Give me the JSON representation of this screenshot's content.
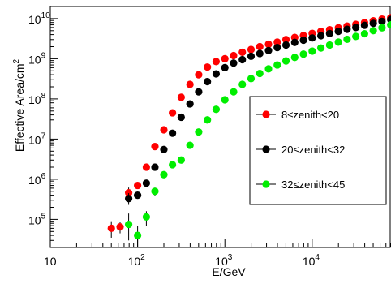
{
  "chart_data": {
    "type": "scatter",
    "title": "",
    "xlabel": "E/GeV",
    "ylabel": "Effective Area/cm",
    "ylabel_sup": "2",
    "x_scale": "log",
    "y_scale": "log",
    "xlim": [
      10,
      80000
    ],
    "ylim": [
      20000,
      20000000000
    ],
    "grid": false,
    "legend_position": "right-middle",
    "x_ticks": [
      {
        "base": "10",
        "exp": "",
        "value": 10
      },
      {
        "base": "10",
        "exp": "2",
        "value": 100
      },
      {
        "base": "10",
        "exp": "3",
        "value": 1000
      },
      {
        "base": "10",
        "exp": "4",
        "value": 10000
      }
    ],
    "y_ticks": [
      {
        "base": "10",
        "exp": "5",
        "value": 100000
      },
      {
        "base": "10",
        "exp": "6",
        "value": 1000000
      },
      {
        "base": "10",
        "exp": "7",
        "value": 10000000
      },
      {
        "base": "10",
        "exp": "8",
        "value": 100000000
      },
      {
        "base": "10",
        "exp": "9",
        "value": 1000000000
      },
      {
        "base": "10",
        "exp": "10",
        "value": 10000000000
      }
    ],
    "series": [
      {
        "name": "8≤zenith<20",
        "color": "#ff0000",
        "points": [
          {
            "x": 50,
            "y": 60000,
            "ylo": 35000,
            "yhi": 90000
          },
          {
            "x": 63,
            "y": 65000,
            "ylo": 45000,
            "yhi": 85000
          },
          {
            "x": 79,
            "y": 460000,
            "ylo": 330000,
            "yhi": 620000
          },
          {
            "x": 100,
            "y": 700000
          },
          {
            "x": 126,
            "y": 2000000
          },
          {
            "x": 158,
            "y": 6500000
          },
          {
            "x": 200,
            "y": 17000000
          },
          {
            "x": 251,
            "y": 45000000
          },
          {
            "x": 316,
            "y": 110000000
          },
          {
            "x": 398,
            "y": 230000000
          },
          {
            "x": 501,
            "y": 400000000
          },
          {
            "x": 631,
            "y": 620000000
          },
          {
            "x": 794,
            "y": 850000000
          },
          {
            "x": 1000,
            "y": 1000000000
          },
          {
            "x": 1259,
            "y": 1200000000
          },
          {
            "x": 1585,
            "y": 1450000000
          },
          {
            "x": 1995,
            "y": 1700000000
          },
          {
            "x": 2512,
            "y": 2000000000
          },
          {
            "x": 3162,
            "y": 2300000000
          },
          {
            "x": 3981,
            "y": 2600000000
          },
          {
            "x": 5012,
            "y": 3000000000
          },
          {
            "x": 6310,
            "y": 3400000000
          },
          {
            "x": 7943,
            "y": 3800000000
          },
          {
            "x": 10000,
            "y": 4300000000
          },
          {
            "x": 12589,
            "y": 4800000000
          },
          {
            "x": 15849,
            "y": 5300000000
          },
          {
            "x": 19953,
            "y": 5900000000
          },
          {
            "x": 25119,
            "y": 6500000000
          },
          {
            "x": 31623,
            "y": 7200000000
          },
          {
            "x": 39811,
            "y": 8000000000
          },
          {
            "x": 50119,
            "y": 8800000000
          },
          {
            "x": 63096,
            "y": 9700000000
          },
          {
            "x": 79433,
            "y": 10500000000
          }
        ]
      },
      {
        "name": "20≤zenith<32",
        "color": "#000000",
        "points": [
          {
            "x": 79,
            "y": 330000,
            "ylo": 230000,
            "yhi": 450000
          },
          {
            "x": 100,
            "y": 400000
          },
          {
            "x": 126,
            "y": 800000
          },
          {
            "x": 158,
            "y": 2000000
          },
          {
            "x": 200,
            "y": 5500000
          },
          {
            "x": 251,
            "y": 14000000
          },
          {
            "x": 316,
            "y": 35000000
          },
          {
            "x": 398,
            "y": 75000000
          },
          {
            "x": 501,
            "y": 150000000
          },
          {
            "x": 631,
            "y": 270000000
          },
          {
            "x": 794,
            "y": 420000000
          },
          {
            "x": 1000,
            "y": 600000000
          },
          {
            "x": 1259,
            "y": 780000000
          },
          {
            "x": 1585,
            "y": 950000000
          },
          {
            "x": 1995,
            "y": 1150000000
          },
          {
            "x": 2512,
            "y": 1350000000
          },
          {
            "x": 3162,
            "y": 1600000000
          },
          {
            "x": 3981,
            "y": 1900000000
          },
          {
            "x": 5012,
            "y": 2200000000
          },
          {
            "x": 6310,
            "y": 2550000000
          },
          {
            "x": 7943,
            "y": 2900000000
          },
          {
            "x": 10000,
            "y": 3300000000
          },
          {
            "x": 12589,
            "y": 3750000000
          },
          {
            "x": 15849,
            "y": 4250000000
          },
          {
            "x": 19953,
            "y": 4800000000
          },
          {
            "x": 25119,
            "y": 5400000000
          },
          {
            "x": 31623,
            "y": 6000000000
          },
          {
            "x": 39811,
            "y": 6800000000
          },
          {
            "x": 50119,
            "y": 7600000000
          },
          {
            "x": 63096,
            "y": 8500000000
          },
          {
            "x": 79433,
            "y": 9500000000
          }
        ]
      },
      {
        "name": "32≤zenith<45",
        "color": "#00ee00",
        "points": [
          {
            "x": 79,
            "y": 75000,
            "ylo": 30000,
            "yhi": 140000
          },
          {
            "x": 100,
            "y": 40000,
            "ylo": 20000,
            "yhi": 70000
          },
          {
            "x": 126,
            "y": 115000,
            "ylo": 70000,
            "yhi": 160000
          },
          {
            "x": 158,
            "y": 500000,
            "ylo": 380000,
            "yhi": 620000
          },
          {
            "x": 200,
            "y": 1300000
          },
          {
            "x": 251,
            "y": 2300000
          },
          {
            "x": 316,
            "y": 3000000
          },
          {
            "x": 398,
            "y": 7000000
          },
          {
            "x": 501,
            "y": 15000000
          },
          {
            "x": 631,
            "y": 30000000
          },
          {
            "x": 794,
            "y": 55000000
          },
          {
            "x": 1000,
            "y": 95000000
          },
          {
            "x": 1259,
            "y": 150000000
          },
          {
            "x": 1585,
            "y": 230000000
          },
          {
            "x": 1995,
            "y": 320000000
          },
          {
            "x": 2512,
            "y": 430000000
          },
          {
            "x": 3162,
            "y": 560000000
          },
          {
            "x": 3981,
            "y": 700000000
          },
          {
            "x": 5012,
            "y": 880000000
          },
          {
            "x": 6310,
            "y": 1080000000
          },
          {
            "x": 7943,
            "y": 1300000000
          },
          {
            "x": 10000,
            "y": 1550000000
          },
          {
            "x": 12589,
            "y": 1850000000
          },
          {
            "x": 15849,
            "y": 2200000000
          },
          {
            "x": 19953,
            "y": 2600000000
          },
          {
            "x": 25119,
            "y": 3050000000
          },
          {
            "x": 31623,
            "y": 3600000000
          },
          {
            "x": 39811,
            "y": 4200000000
          },
          {
            "x": 50119,
            "y": 5000000000
          },
          {
            "x": 63096,
            "y": 5900000000
          },
          {
            "x": 79433,
            "y": 7000000000
          }
        ]
      }
    ]
  }
}
